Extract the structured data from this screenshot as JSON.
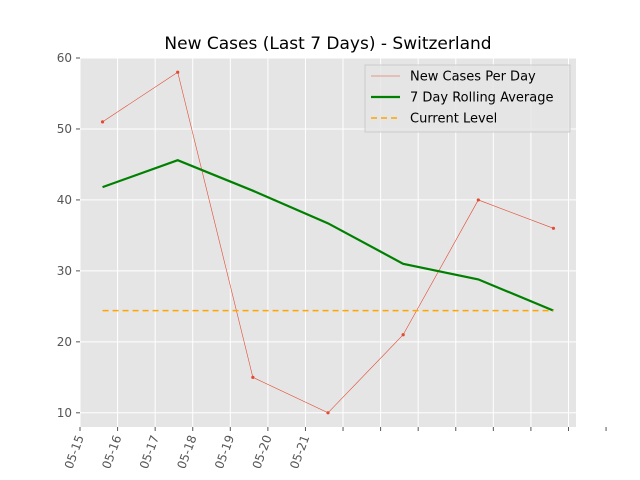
{
  "chart_data": {
    "type": "line",
    "title": "New Cases (Last 7 Days) - Switzerland",
    "xlabel": "",
    "ylabel": "",
    "x_tick_labels": [
      "05-15",
      "05-16",
      "05-17",
      "05-18",
      "05-19",
      "05-20",
      "05-21",
      "",
      "",
      "",
      "",
      "",
      "",
      "",
      ""
    ],
    "xlim": [
      -0.3,
      6.3
    ],
    "ylim": [
      8,
      60
    ],
    "yticks": [
      10,
      20,
      30,
      40,
      50,
      60
    ],
    "grid": true,
    "legend_position": "top-right",
    "x": [
      0,
      1,
      2,
      3,
      4,
      5,
      6
    ],
    "series": [
      {
        "name": "New Cases Per Day",
        "style": "thin-marker-line",
        "color": "#e24a33",
        "values": [
          51,
          58,
          15,
          10,
          21,
          40,
          36
        ]
      },
      {
        "name": "7 Day Rolling Average",
        "style": "thick-line",
        "color": "#008000",
        "values": [
          41.8,
          45.6,
          41.3,
          36.7,
          31.0,
          28.8,
          24.4
        ]
      },
      {
        "name": "Current Level",
        "style": "dashed-line",
        "color": "#ffa500",
        "values": [
          24.4,
          24.4,
          24.4,
          24.4,
          24.4,
          24.4,
          24.4
        ]
      }
    ]
  }
}
